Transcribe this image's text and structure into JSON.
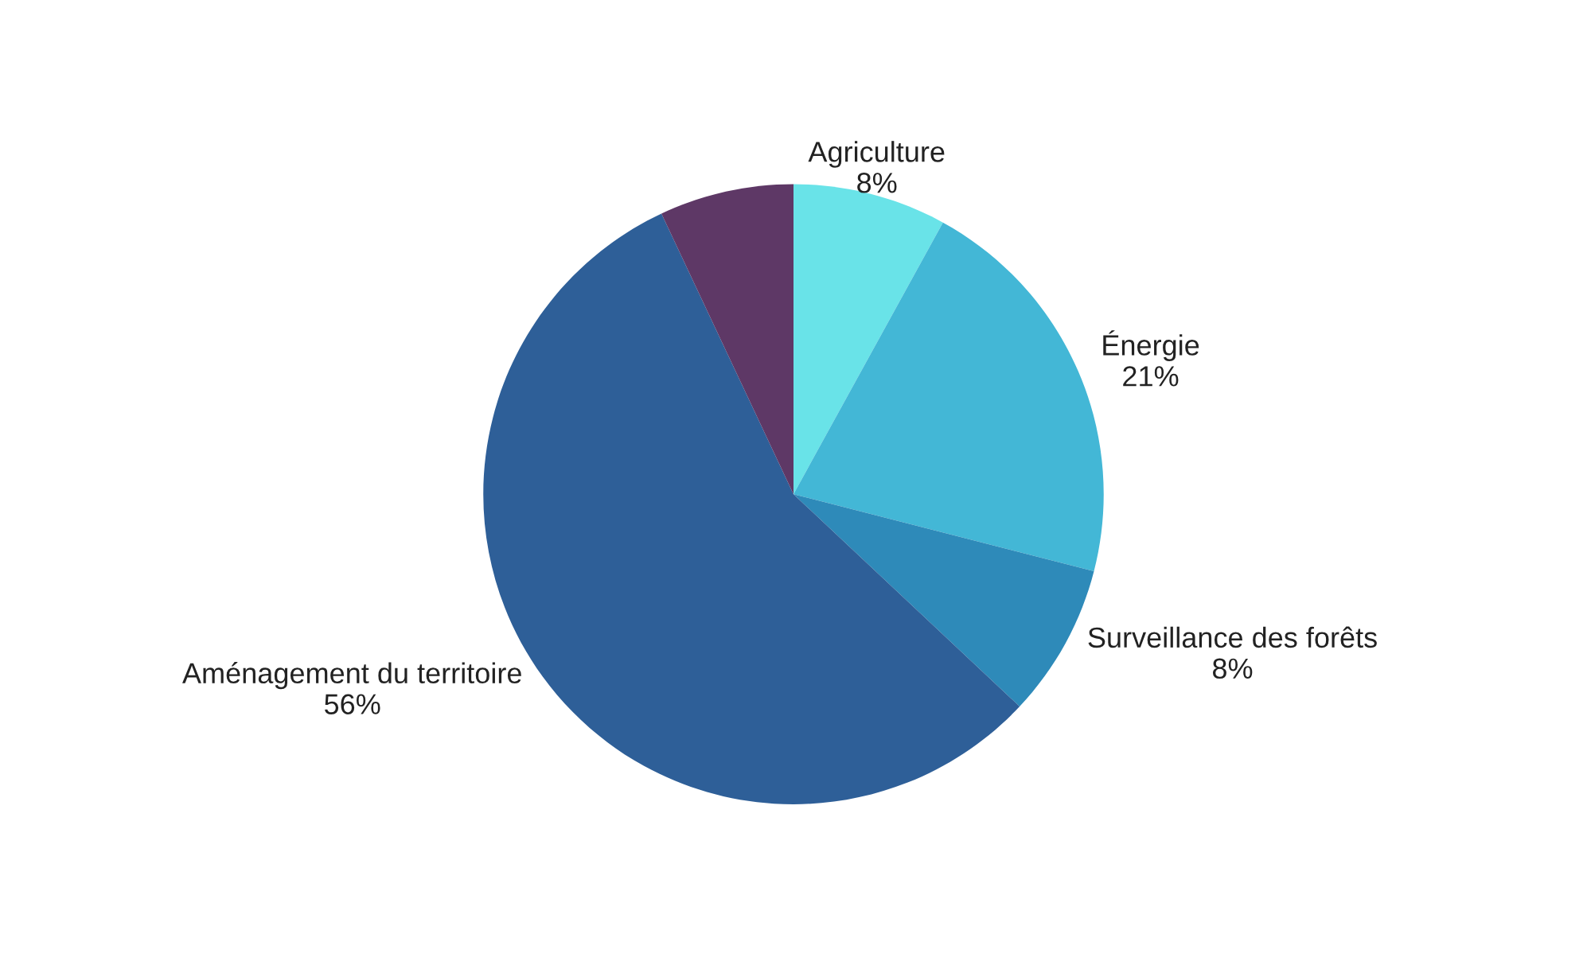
{
  "chart_data": {
    "type": "pie",
    "categories": [
      "Agriculture",
      "Énergie",
      "Surveillance des forêts",
      "Aménagement du territoire",
      null
    ],
    "values": [
      8,
      21,
      8,
      56,
      7
    ],
    "value_labels": [
      "8%",
      "21%",
      "8%",
      "56%",
      null
    ],
    "colors": [
      "#69e3e8",
      "#43b7d6",
      "#2e8ab9",
      "#2e5f98",
      "#5e3866"
    ],
    "legend": false
  }
}
